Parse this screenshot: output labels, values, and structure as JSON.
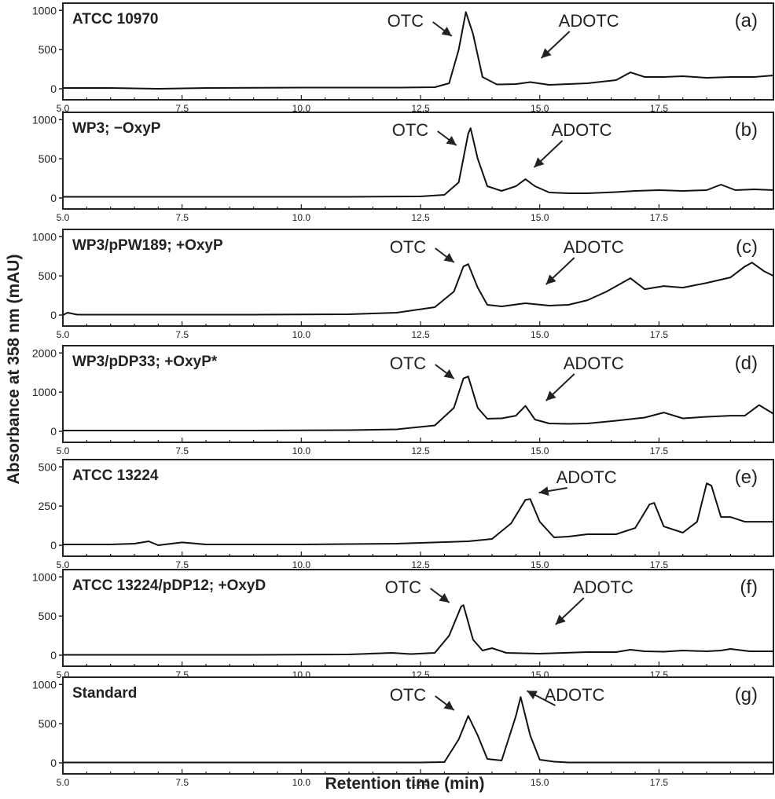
{
  "figure": {
    "ylabel": "Absorbance at 358 nm (mAU)",
    "xlabel": "Retention time (min)"
  },
  "chart_data": [
    {
      "type": "line",
      "label": "ATCC 10970",
      "tag": "(a)",
      "xlim": [
        5.0,
        19.9
      ],
      "ylim": [
        0,
        1000
      ],
      "xticks": [
        "5.0",
        "7.5",
        "10.0",
        "12.5",
        "15.0",
        "17.5"
      ],
      "yticks": [
        "0",
        "500",
        "1000"
      ],
      "x": [
        5.0,
        6.0,
        7.0,
        8.0,
        10.0,
        12.0,
        12.8,
        13.1,
        13.3,
        13.45,
        13.6,
        13.8,
        14.1,
        14.5,
        14.8,
        15.2,
        15.6,
        16.0,
        16.6,
        16.9,
        17.2,
        17.6,
        18.0,
        18.5,
        19.0,
        19.5,
        19.9
      ],
      "y": [
        10,
        10,
        0,
        10,
        15,
        15,
        20,
        70,
        500,
        980,
        700,
        150,
        55,
        60,
        85,
        50,
        60,
        70,
        110,
        210,
        150,
        150,
        160,
        140,
        150,
        150,
        170
      ],
      "annotations": [
        {
          "text": "OTC",
          "x": 13.45,
          "y": 980
        },
        {
          "text": "ADOTC",
          "x": 14.9,
          "y": 85
        }
      ]
    },
    {
      "type": "line",
      "label": "WP3; −OxyP",
      "tag": "(b)",
      "xlim": [
        5.0,
        19.9
      ],
      "ylim": [
        0,
        1000
      ],
      "xticks": [
        "5.0",
        "7.5",
        "10.0",
        "12.5",
        "15.0",
        "17.5"
      ],
      "yticks": [
        "0",
        "500",
        "1000"
      ],
      "x": [
        5.0,
        7.0,
        9.0,
        11.0,
        12.5,
        13.0,
        13.3,
        13.5,
        13.55,
        13.7,
        13.9,
        14.2,
        14.5,
        14.7,
        14.9,
        15.2,
        15.6,
        16.0,
        16.6,
        17.0,
        17.5,
        18.0,
        18.5,
        18.8,
        19.1,
        19.5,
        19.9
      ],
      "y": [
        15,
        15,
        15,
        15,
        20,
        40,
        200,
        820,
        890,
        500,
        150,
        90,
        150,
        240,
        150,
        70,
        60,
        60,
        75,
        90,
        100,
        90,
        100,
        170,
        100,
        110,
        100
      ],
      "annotations": [
        {
          "text": "OTC",
          "x": 13.55,
          "y": 890
        },
        {
          "text": "ADOTC",
          "x": 14.75,
          "y": 240
        }
      ]
    },
    {
      "type": "line",
      "label": "WP3/pPW189; +OxyP",
      "tag": "(c)",
      "xlim": [
        5.0,
        19.9
      ],
      "ylim": [
        0,
        1000
      ],
      "xticks": [
        "5.0",
        "7.5",
        "10.0",
        "12.5",
        "15.0",
        "17.5"
      ],
      "yticks": [
        "0",
        "500",
        "1000"
      ],
      "x": [
        5.0,
        5.1,
        5.3,
        7.0,
        9.0,
        11.0,
        12.0,
        12.8,
        13.2,
        13.4,
        13.5,
        13.7,
        13.9,
        14.2,
        14.7,
        15.2,
        15.6,
        16.0,
        16.4,
        16.9,
        17.2,
        17.6,
        18.0,
        18.5,
        19.0,
        19.3,
        19.45,
        19.7,
        19.9
      ],
      "y": [
        0,
        30,
        5,
        5,
        5,
        10,
        30,
        100,
        300,
        620,
        650,
        350,
        130,
        110,
        150,
        120,
        130,
        190,
        300,
        470,
        330,
        370,
        350,
        410,
        480,
        620,
        670,
        560,
        500
      ],
      "annotations": [
        {
          "text": "OTC",
          "x": 13.5,
          "y": 650
        },
        {
          "text": "ADOTC",
          "x": 15.0,
          "y": 130
        }
      ]
    },
    {
      "type": "line",
      "label": "WP3/pDP33; +OxyP*",
      "tag": "(d)",
      "xlim": [
        5.0,
        19.9
      ],
      "ylim": [
        0,
        2000
      ],
      "xticks": [
        "5.0",
        "7.5",
        "10.0",
        "12.5",
        "15.0",
        "17.5"
      ],
      "yticks": [
        "0",
        "1000",
        "2000"
      ],
      "x": [
        5.0,
        7.0,
        9.0,
        11.0,
        12.0,
        12.8,
        13.2,
        13.4,
        13.5,
        13.7,
        13.9,
        14.2,
        14.5,
        14.7,
        14.9,
        15.2,
        15.6,
        16.0,
        16.6,
        17.2,
        17.6,
        18.0,
        18.5,
        19.0,
        19.3,
        19.6,
        19.9
      ],
      "y": [
        20,
        20,
        20,
        30,
        50,
        150,
        600,
        1350,
        1400,
        600,
        320,
        330,
        400,
        650,
        300,
        200,
        190,
        200,
        270,
        350,
        480,
        330,
        370,
        400,
        400,
        670,
        450
      ],
      "annotations": [
        {
          "text": "OTC",
          "x": 13.5,
          "y": 1400
        },
        {
          "text": "ADOTC",
          "x": 15.0,
          "y": 400
        }
      ]
    },
    {
      "type": "line",
      "label": "ATCC 13224",
      "tag": "(e)",
      "xlim": [
        5.0,
        19.9
      ],
      "ylim": [
        0,
        500
      ],
      "xticks": [
        "5.0",
        "7.5",
        "10.0",
        "12.5",
        "15.0",
        "17.5"
      ],
      "yticks": [
        "0",
        "250",
        "500"
      ],
      "x": [
        5.0,
        6.0,
        6.5,
        6.8,
        7.0,
        7.5,
        8.0,
        10.0,
        12.0,
        13.0,
        13.5,
        14.0,
        14.4,
        14.7,
        14.8,
        15.0,
        15.3,
        15.6,
        16.0,
        16.6,
        17.0,
        17.3,
        17.4,
        17.6,
        18.0,
        18.3,
        18.5,
        18.6,
        18.8,
        19.0,
        19.3,
        19.6,
        19.9
      ],
      "y": [
        5,
        5,
        10,
        25,
        0,
        18,
        5,
        5,
        10,
        20,
        25,
        40,
        140,
        290,
        295,
        150,
        50,
        55,
        70,
        70,
        110,
        260,
        270,
        120,
        80,
        150,
        395,
        380,
        180,
        180,
        150,
        150,
        150
      ],
      "annotations": [
        {
          "text": "ADOTC",
          "x": 14.85,
          "y": 295
        }
      ]
    },
    {
      "type": "line",
      "label": "ATCC  13224/pDP12; +OxyD",
      "tag": "(f)",
      "xlim": [
        5.0,
        19.9
      ],
      "ylim": [
        0,
        1000
      ],
      "xticks": [
        "5.0",
        "7.5",
        "10.0",
        "12.5",
        "15.0",
        "17.5"
      ],
      "yticks": [
        "0",
        "500",
        "1000"
      ],
      "x": [
        5.0,
        7.0,
        9.0,
        11.0,
        11.9,
        12.3,
        12.8,
        13.1,
        13.35,
        13.4,
        13.6,
        13.8,
        14.0,
        14.3,
        15.0,
        15.5,
        16.0,
        16.6,
        16.9,
        17.2,
        17.6,
        18.0,
        18.5,
        18.8,
        19.0,
        19.4,
        19.9
      ],
      "y": [
        5,
        5,
        5,
        10,
        30,
        15,
        30,
        250,
        620,
        640,
        200,
        60,
        90,
        30,
        20,
        30,
        40,
        40,
        70,
        50,
        45,
        60,
        50,
        60,
        80,
        50,
        50
      ],
      "annotations": [
        {
          "text": "OTC",
          "x": 13.4,
          "y": 640
        },
        {
          "text": "ADOTC",
          "x": 15.2,
          "y": 25
        }
      ]
    },
    {
      "type": "line",
      "label": "Standard",
      "tag": "(g)",
      "xlim": [
        5.0,
        19.9
      ],
      "ylim": [
        0,
        1000
      ],
      "xticks": [
        "5.0",
        "7.5",
        "10.0",
        "12.5",
        "15.0",
        "17.5"
      ],
      "yticks": [
        "0",
        "500",
        "1000"
      ],
      "x": [
        5.0,
        7.0,
        9.0,
        11.0,
        12.5,
        13.0,
        13.3,
        13.5,
        13.7,
        13.9,
        14.2,
        14.5,
        14.6,
        14.8,
        15.0,
        15.3,
        15.6,
        16.0,
        17.0,
        18.0,
        19.0,
        19.9
      ],
      "y": [
        5,
        5,
        5,
        5,
        5,
        10,
        300,
        600,
        350,
        50,
        30,
        600,
        840,
        350,
        40,
        15,
        5,
        5,
        5,
        5,
        5,
        5
      ],
      "annotations": [
        {
          "text": "OTC",
          "x": 13.5,
          "y": 600
        },
        {
          "text": "ADOTC",
          "x": 14.6,
          "y": 840
        }
      ]
    }
  ]
}
